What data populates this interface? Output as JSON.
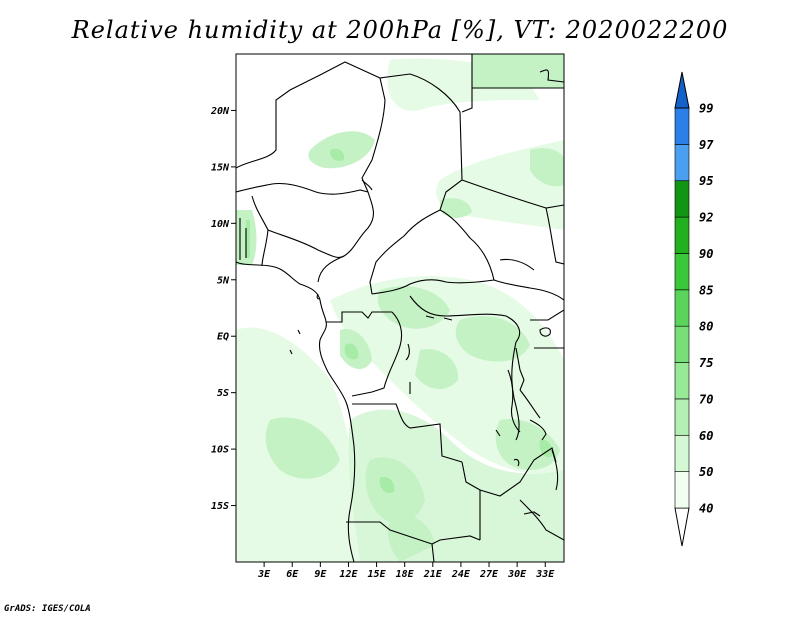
{
  "title": "Relative humidity at 200hPa [%], VT: 2020022200",
  "credit": "GrADS: IGES/COLA",
  "map": {
    "lon_range": [
      0,
      35
    ],
    "lat_range": [
      -20,
      25
    ],
    "y_ticks": [
      {
        "lat": 20,
        "label": "20N"
      },
      {
        "lat": 15,
        "label": "15N"
      },
      {
        "lat": 10,
        "label": "10N"
      },
      {
        "lat": 5,
        "label": "5N"
      },
      {
        "lat": 0,
        "label": "EQ"
      },
      {
        "lat": -5,
        "label": "5S"
      },
      {
        "lat": -10,
        "label": "10S"
      },
      {
        "lat": -15,
        "label": "15S"
      }
    ],
    "x_ticks": [
      {
        "lon": 3,
        "label": "3E"
      },
      {
        "lon": 6,
        "label": "6E"
      },
      {
        "lon": 9,
        "label": "9E"
      },
      {
        "lon": 12,
        "label": "12E"
      },
      {
        "lon": 15,
        "label": "15E"
      },
      {
        "lon": 18,
        "label": "18E"
      },
      {
        "lon": 21,
        "label": "21E"
      },
      {
        "lon": 24,
        "label": "24E"
      },
      {
        "lon": 27,
        "label": "27E"
      },
      {
        "lon": 30,
        "label": "30E"
      },
      {
        "lon": 33,
        "label": "33E"
      }
    ]
  },
  "colorbar": {
    "levels": [
      "40",
      "50",
      "60",
      "70",
      "75",
      "80",
      "85",
      "90",
      "92",
      "95",
      "97",
      "99"
    ],
    "colors": [
      "#ffffff",
      "#f0fff0",
      "#d4f7d4",
      "#b4efb4",
      "#97e997",
      "#78df78",
      "#5ad45a",
      "#39c839",
      "#20b020",
      "#129512",
      "#4a9ff0",
      "#2a7fe8",
      "#1561cc"
    ]
  }
}
